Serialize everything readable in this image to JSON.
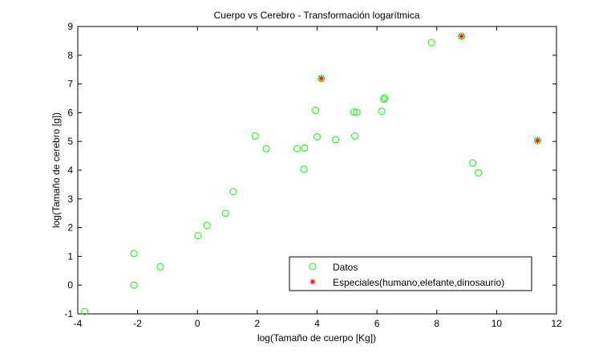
{
  "chart_data": {
    "type": "scatter",
    "title": "Cuerpo vs Cerebro - Transformación logarítmica",
    "xlabel": "log(Tamaño de cuerpo [Kg])",
    "ylabel": "log(Tamaño de cerebro [g])",
    "xlim": [
      -4,
      12
    ],
    "ylim": [
      -1,
      9
    ],
    "xticks": [
      -4,
      -2,
      0,
      2,
      4,
      6,
      8,
      10,
      12
    ],
    "yticks": [
      -1,
      0,
      1,
      2,
      3,
      4,
      5,
      6,
      7,
      8,
      9
    ],
    "grid": false,
    "legend_position": "bottom-right",
    "colors": {
      "datos": "#00ff00",
      "especiales": "#ff0000"
    },
    "series": [
      {
        "name": "Datos",
        "marker": "circle",
        "points": [
          [
            -3.77,
            -0.92
          ],
          [
            -2.12,
            0.0
          ],
          [
            -2.12,
            1.1
          ],
          [
            -1.24,
            0.64
          ],
          [
            0.02,
            1.72
          ],
          [
            0.32,
            2.08
          ],
          [
            0.94,
            2.5
          ],
          [
            1.2,
            3.25
          ],
          [
            1.93,
            5.19
          ],
          [
            2.3,
            4.75
          ],
          [
            3.33,
            4.75
          ],
          [
            3.56,
            4.03
          ],
          [
            3.58,
            4.77
          ],
          [
            3.95,
            6.08
          ],
          [
            4.0,
            5.16
          ],
          [
            4.14,
            7.19
          ],
          [
            4.62,
            5.06
          ],
          [
            5.23,
            6.02
          ],
          [
            5.26,
            5.19
          ],
          [
            5.33,
            6.01
          ],
          [
            6.16,
            6.05
          ],
          [
            6.23,
            6.47
          ],
          [
            6.26,
            6.52
          ],
          [
            7.83,
            8.44
          ],
          [
            8.83,
            8.66
          ],
          [
            9.2,
            4.25
          ],
          [
            9.39,
            3.91
          ],
          [
            11.37,
            5.03
          ]
        ]
      },
      {
        "name": "Especiales(humano,elefante,dinosaurio)",
        "marker": "star",
        "points": [
          [
            4.14,
            7.19
          ],
          [
            8.83,
            8.66
          ],
          [
            11.37,
            5.03
          ]
        ]
      }
    ]
  }
}
